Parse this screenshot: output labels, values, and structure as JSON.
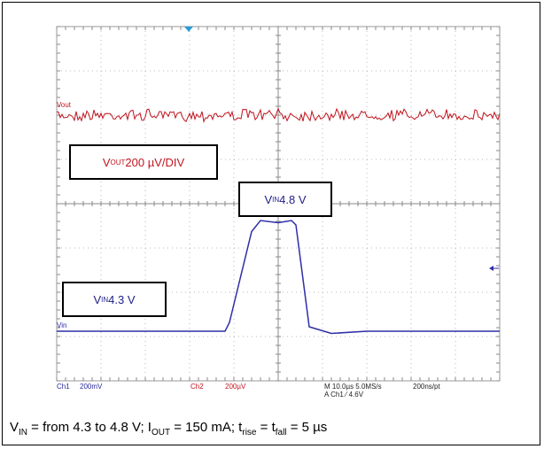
{
  "chart_data": {
    "type": "line",
    "x_unit": "µs",
    "xlim": [
      -50,
      50
    ],
    "channels": [
      {
        "id": "Ch1",
        "trace_label": "Vin",
        "color": "#2e2ea8",
        "scale": "200mV",
        "unit_per_div": 0.2,
        "x": [
          -50,
          -12,
          -11,
          -6,
          -4,
          0,
          3,
          4,
          7,
          12,
          20,
          50
        ],
        "y": [
          4.3,
          4.3,
          4.34,
          4.75,
          4.8,
          4.79,
          4.8,
          4.78,
          4.32,
          4.29,
          4.3,
          4.3
        ]
      },
      {
        "id": "Ch2",
        "trace_label": "Vout",
        "color": "#c0141e",
        "scale": "200µV",
        "unit_per_div": 0.0002,
        "description_noise": "flat noisy trace"
      }
    ],
    "annotations": [
      {
        "id": "vout",
        "base": "V",
        "sub": "OUT",
        "text": " 200 µV/DIV"
      },
      {
        "id": "vin_hi",
        "base": "V",
        "sub": "IN",
        "text": " 4.8 V"
      },
      {
        "id": "vin_lo",
        "base": "V",
        "sub": "IN",
        "text": " 4.3 V"
      }
    ],
    "status_bar": {
      "ch1_label": "Ch1",
      "ch1_scale": "200mV",
      "ch2_label": "Ch2",
      "ch2_scale": "200µV",
      "timebase": "M 10.0µs 5.0MS/s",
      "sample": "200ns/pt",
      "trigger": "A  Ch1  ⁄  4.6V"
    }
  },
  "caption": {
    "p1": "V",
    "s1": "IN",
    "p2": " = from 4.3 to 4.8 V; I",
    "s2": "OUT",
    "p3": " = 150 mA; t",
    "s3": "rise",
    "p4": " = t",
    "s4": "fall",
    "p5": " = 5 µs"
  }
}
